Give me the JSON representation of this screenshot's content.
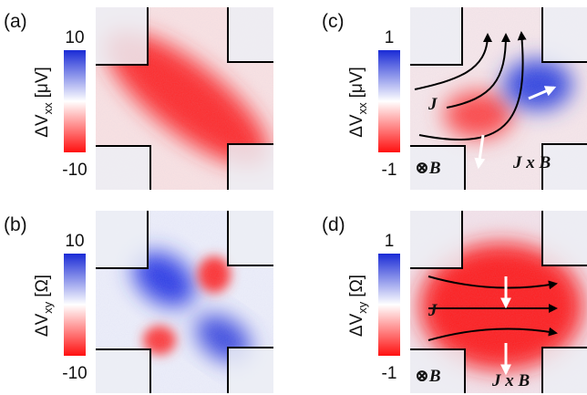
{
  "panels": [
    {
      "label": "(a)",
      "quantity": "ΔV",
      "subscript": "xx",
      "unit": "[μV]",
      "cbar_max": 10,
      "cbar_min": -10
    },
    {
      "label": "(b)",
      "quantity": "ΔV",
      "subscript": "xy",
      "unit": "[Ω]",
      "cbar_max": 10,
      "cbar_min": -10
    },
    {
      "label": "(c)",
      "quantity": "ΔV",
      "subscript": "xx",
      "unit": "[μV]",
      "cbar_max": 1,
      "cbar_min": -1,
      "current": "J",
      "force": "J x B",
      "field": "⊗B"
    },
    {
      "label": "(d)",
      "quantity": "ΔV",
      "subscript": "xy",
      "unit": "[Ω]",
      "cbar_max": 1,
      "cbar_min": -1,
      "current": "J",
      "force": "J x B",
      "field": "⊗B"
    }
  ]
}
